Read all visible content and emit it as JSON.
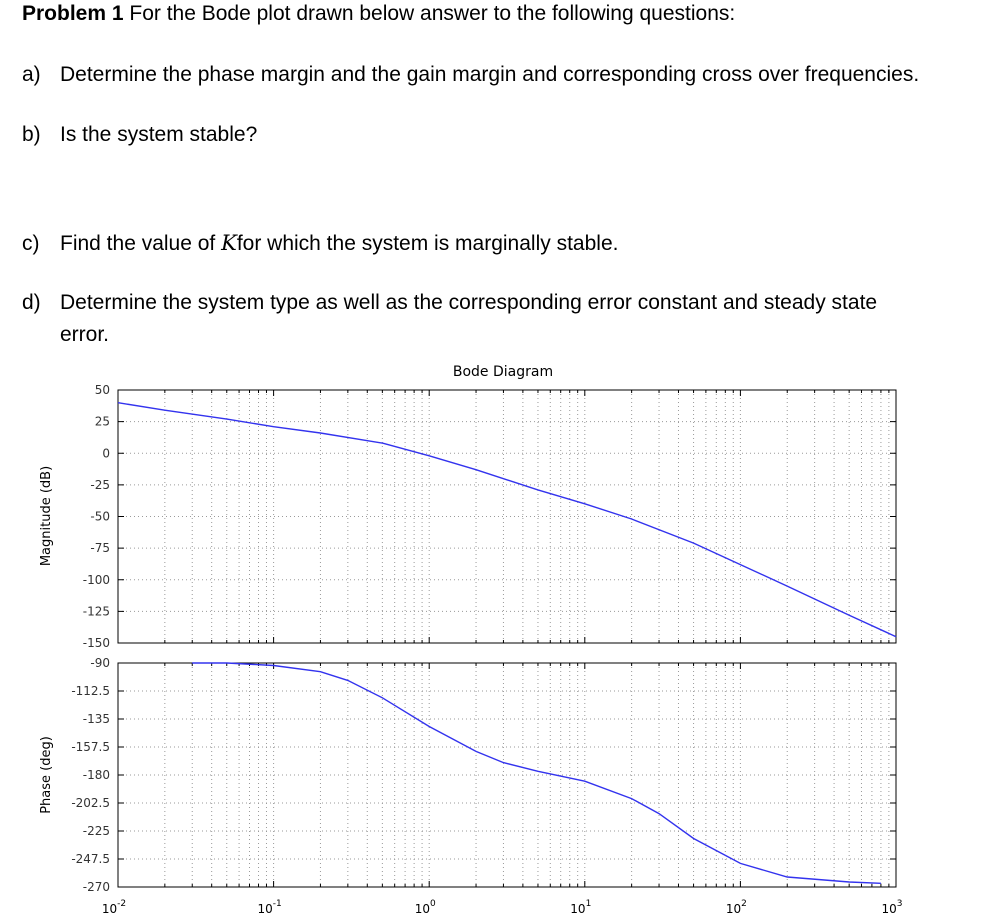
{
  "problem": {
    "heading": "Problem 1",
    "intro": " For the Bode plot drawn below answer to the following questions:"
  },
  "questions": [
    {
      "label": "a)",
      "text": "Determine the phase margin and the gain margin and corresponding cross over frequencies."
    },
    {
      "label": "b)",
      "text": "Is the system stable?"
    },
    {
      "label": "c)",
      "pre": "Find the value of ",
      "var": "K",
      "post": "for which the system is marginally stable."
    },
    {
      "label": "d)",
      "line1": "Determine the system type as well as the corresponding error constant and steady state",
      "line2": "error."
    }
  ],
  "chart_data": {
    "type": "line",
    "title": "Bode Diagram",
    "x_scale": "log",
    "xlim": [
      0.01,
      1000
    ],
    "x_tick_labels": [
      {
        "base": "10",
        "exp": "-2"
      },
      {
        "base": "10",
        "exp": "-1"
      },
      {
        "base": "10",
        "exp": "0"
      },
      {
        "base": "10",
        "exp": "1"
      },
      {
        "base": "10",
        "exp": "2"
      },
      {
        "base": "10",
        "exp": "3"
      }
    ],
    "grid": true,
    "line_color": "#3333ee",
    "panels": [
      {
        "ylabel": "Magnitude (dB)",
        "ylim": [
          -150,
          50
        ],
        "yticks": [
          50,
          25,
          0,
          -25,
          -50,
          -75,
          -100,
          -125,
          -150
        ],
        "series": {
          "x": [
            0.01,
            0.02,
            0.05,
            0.1,
            0.2,
            0.5,
            1,
            2,
            5,
            10,
            20,
            50,
            100,
            200,
            500,
            1000
          ],
          "y": [
            40,
            34,
            27,
            21,
            16,
            8,
            -2,
            -13,
            -29,
            -40,
            -52,
            -71,
            -88,
            -105,
            -128,
            -145
          ]
        }
      },
      {
        "ylabel": "Phase (deg)",
        "ylim": [
          -270,
          -90
        ],
        "yticks": [
          -90,
          -112.5,
          -135,
          -157.5,
          -180,
          -202.5,
          -225,
          -247.5,
          -270
        ],
        "series": {
          "x": [
            0.03,
            0.05,
            0.1,
            0.2,
            0.3,
            0.5,
            1,
            2,
            3,
            5,
            10,
            20,
            30,
            50,
            100,
            200,
            500,
            800
          ],
          "y": [
            -90,
            -90,
            -92,
            -97,
            -104,
            -118,
            -141,
            -161,
            -170,
            -177,
            -185,
            -199,
            -211,
            -231,
            -251,
            -262,
            -266,
            -267
          ]
        }
      }
    ]
  }
}
